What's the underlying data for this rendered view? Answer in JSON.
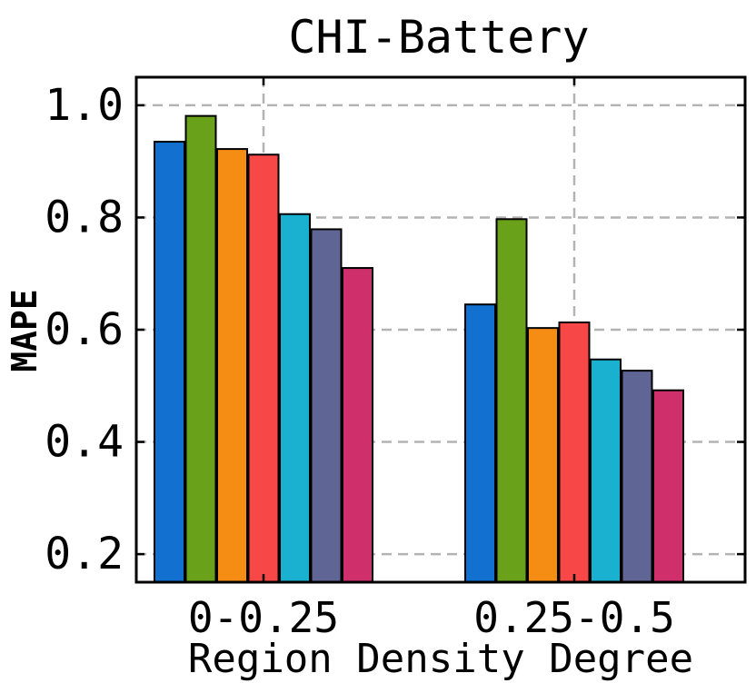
{
  "chart_data": {
    "type": "bar",
    "title": "CHI-Battery",
    "xlabel": "Region Density Degree",
    "ylabel": "MAPE",
    "categories": [
      "0-0.25",
      "0.25-0.5"
    ],
    "ylim": [
      0.15,
      1.05
    ],
    "yticks": [
      "0.2",
      "0.4",
      "0.6",
      "0.8",
      "1.0"
    ],
    "grid": true,
    "series": [
      {
        "color": "#1170D0",
        "values": [
          0.935,
          0.645
        ]
      },
      {
        "color": "#6AA11B",
        "values": [
          0.981,
          0.797
        ]
      },
      {
        "color": "#F58D14",
        "values": [
          0.922,
          0.603
        ]
      },
      {
        "color": "#F74746",
        "values": [
          0.912,
          0.613
        ]
      },
      {
        "color": "#19B1CF",
        "values": [
          0.806,
          0.547
        ]
      },
      {
        "color": "#5F6594",
        "values": [
          0.779,
          0.527
        ]
      },
      {
        "color": "#CF2F6A",
        "values": [
          0.71,
          0.492
        ]
      }
    ]
  }
}
